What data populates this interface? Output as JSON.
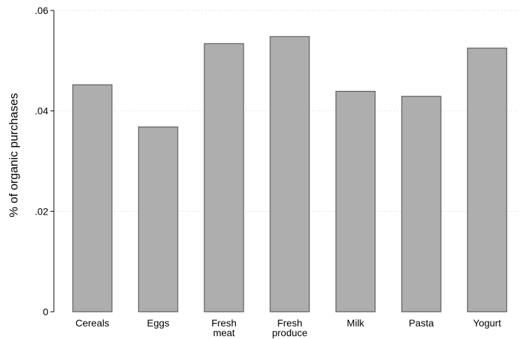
{
  "chart_data": {
    "type": "bar",
    "title": "",
    "xlabel": "",
    "ylabel": "% of organic purchases",
    "ylim": [
      0,
      0.06
    ],
    "yticks": [
      {
        "value": 0,
        "label": "0"
      },
      {
        "value": 0.02,
        "label": ".02"
      },
      {
        "value": 0.04,
        "label": ".04"
      },
      {
        "value": 0.06,
        "label": ".06"
      }
    ],
    "grid": true,
    "legend": "none",
    "categories": [
      [
        "Cereals"
      ],
      [
        "Eggs"
      ],
      [
        "Fresh",
        "meat"
      ],
      [
        "Fresh",
        "produce"
      ],
      [
        "Milk"
      ],
      [
        "Pasta"
      ],
      [
        "Yogurt"
      ]
    ],
    "values": [
      0.0452,
      0.0368,
      0.0534,
      0.0548,
      0.0439,
      0.0429,
      0.0525
    ],
    "bar_color": "#aeaeae",
    "bar_edge_color": "#595959",
    "grid_color": "#dcdcdc"
  }
}
